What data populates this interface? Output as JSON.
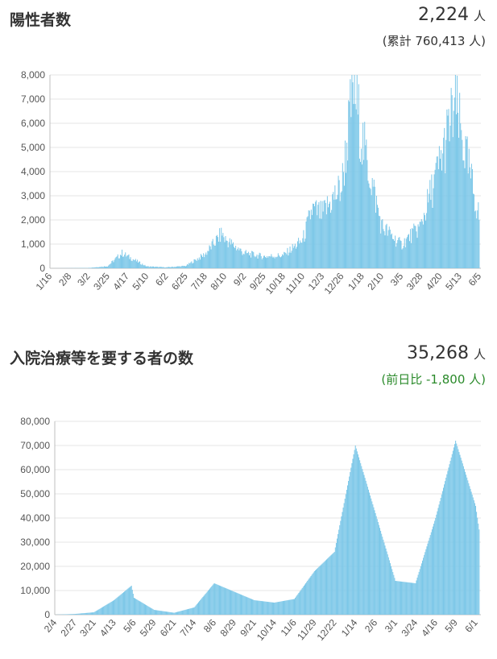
{
  "positive": {
    "title": "陽性者数",
    "value": "2,224",
    "unit": "人",
    "sub": "(累計 760,413 人)"
  },
  "hospital": {
    "title": "入院治療等を要する者の数",
    "value": "35,268",
    "unit": "人",
    "sub": "(前日比 -1,800 人)"
  },
  "colors": {
    "bar": "#7cc7e8",
    "grid": "#e4e4e4",
    "text": "#333333",
    "change": "#2a8a2a"
  },
  "chart_data": [
    {
      "type": "bar",
      "x_tick_labels": [
        "1/16",
        "2/8",
        "3/2",
        "3/25",
        "4/17",
        "5/10",
        "6/2",
        "6/25",
        "7/18",
        "8/10",
        "9/2",
        "9/25",
        "10/18",
        "11/10",
        "12/3",
        "12/26",
        "1/18",
        "2/10",
        "3/5",
        "3/28",
        "4/20",
        "5/13",
        "6/5"
      ],
      "y_tick_labels": [
        "0",
        "1,000",
        "2,000",
        "3,000",
        "4,000",
        "5,000",
        "6,000",
        "7,000",
        "8,000"
      ],
      "ylim": [
        0,
        8000
      ],
      "grid": true,
      "series": [
        {
          "values_interval_days": 1,
          "approx_points": [
            {
              "x": "1/16",
              "y": 0
            },
            {
              "x": "2/8",
              "y": 5
            },
            {
              "x": "3/2",
              "y": 15
            },
            {
              "x": "3/25",
              "y": 90
            },
            {
              "x": "4/11",
              "y": 650
            },
            {
              "x": "4/17",
              "y": 520
            },
            {
              "x": "5/10",
              "y": 80
            },
            {
              "x": "6/2",
              "y": 40
            },
            {
              "x": "6/25",
              "y": 100
            },
            {
              "x": "7/18",
              "y": 600
            },
            {
              "x": "8/7",
              "y": 1500
            },
            {
              "x": "8/10",
              "y": 1250
            },
            {
              "x": "9/2",
              "y": 650
            },
            {
              "x": "9/25",
              "y": 500
            },
            {
              "x": "10/18",
              "y": 550
            },
            {
              "x": "11/10",
              "y": 1200
            },
            {
              "x": "11/21",
              "y": 2500
            },
            {
              "x": "12/3",
              "y": 2300
            },
            {
              "x": "12/26",
              "y": 3500
            },
            {
              "x": "1/8",
              "y": 7800
            },
            {
              "x": "1/18",
              "y": 5500
            },
            {
              "x": "2/10",
              "y": 1800
            },
            {
              "x": "3/5",
              "y": 1000
            },
            {
              "x": "3/28",
              "y": 1800
            },
            {
              "x": "4/20",
              "y": 4500
            },
            {
              "x": "5/8",
              "y": 7000
            },
            {
              "x": "5/13",
              "y": 6000
            },
            {
              "x": "6/5",
              "y": 2200
            }
          ]
        }
      ]
    },
    {
      "type": "area",
      "x_tick_labels": [
        "2/4",
        "2/27",
        "3/21",
        "4/13",
        "5/6",
        "5/29",
        "6/21",
        "7/14",
        "8/6",
        "8/29",
        "9/21",
        "10/14",
        "11/6",
        "11/29",
        "12/22",
        "1/14",
        "2/6",
        "3/1",
        "3/24",
        "4/16",
        "5/9",
        "6/1"
      ],
      "y_tick_labels": [
        "0",
        "10,000",
        "20,000",
        "30,000",
        "40,000",
        "50,000",
        "60,000",
        "70,000",
        "80,000"
      ],
      "ylim": [
        0,
        80000
      ],
      "grid": true,
      "series": [
        {
          "approx_points": [
            {
              "x": "2/4",
              "y": 0
            },
            {
              "x": "2/27",
              "y": 300
            },
            {
              "x": "3/21",
              "y": 1000
            },
            {
              "x": "4/13",
              "y": 6000
            },
            {
              "x": "5/3",
              "y": 12000
            },
            {
              "x": "5/6",
              "y": 7000
            },
            {
              "x": "5/29",
              "y": 2000
            },
            {
              "x": "6/21",
              "y": 800
            },
            {
              "x": "7/14",
              "y": 3000
            },
            {
              "x": "8/6",
              "y": 13000
            },
            {
              "x": "8/29",
              "y": 9500
            },
            {
              "x": "9/21",
              "y": 6000
            },
            {
              "x": "10/14",
              "y": 5000
            },
            {
              "x": "11/6",
              "y": 6500
            },
            {
              "x": "11/29",
              "y": 18000
            },
            {
              "x": "12/22",
              "y": 26000
            },
            {
              "x": "1/14",
              "y": 70000
            },
            {
              "x": "2/6",
              "y": 42000
            },
            {
              "x": "3/1",
              "y": 14000
            },
            {
              "x": "3/24",
              "y": 13000
            },
            {
              "x": "4/16",
              "y": 40000
            },
            {
              "x": "5/9",
              "y": 72000
            },
            {
              "x": "6/1",
              "y": 45000
            },
            {
              "x": "6/5",
              "y": 35268
            }
          ]
        }
      ]
    }
  ]
}
